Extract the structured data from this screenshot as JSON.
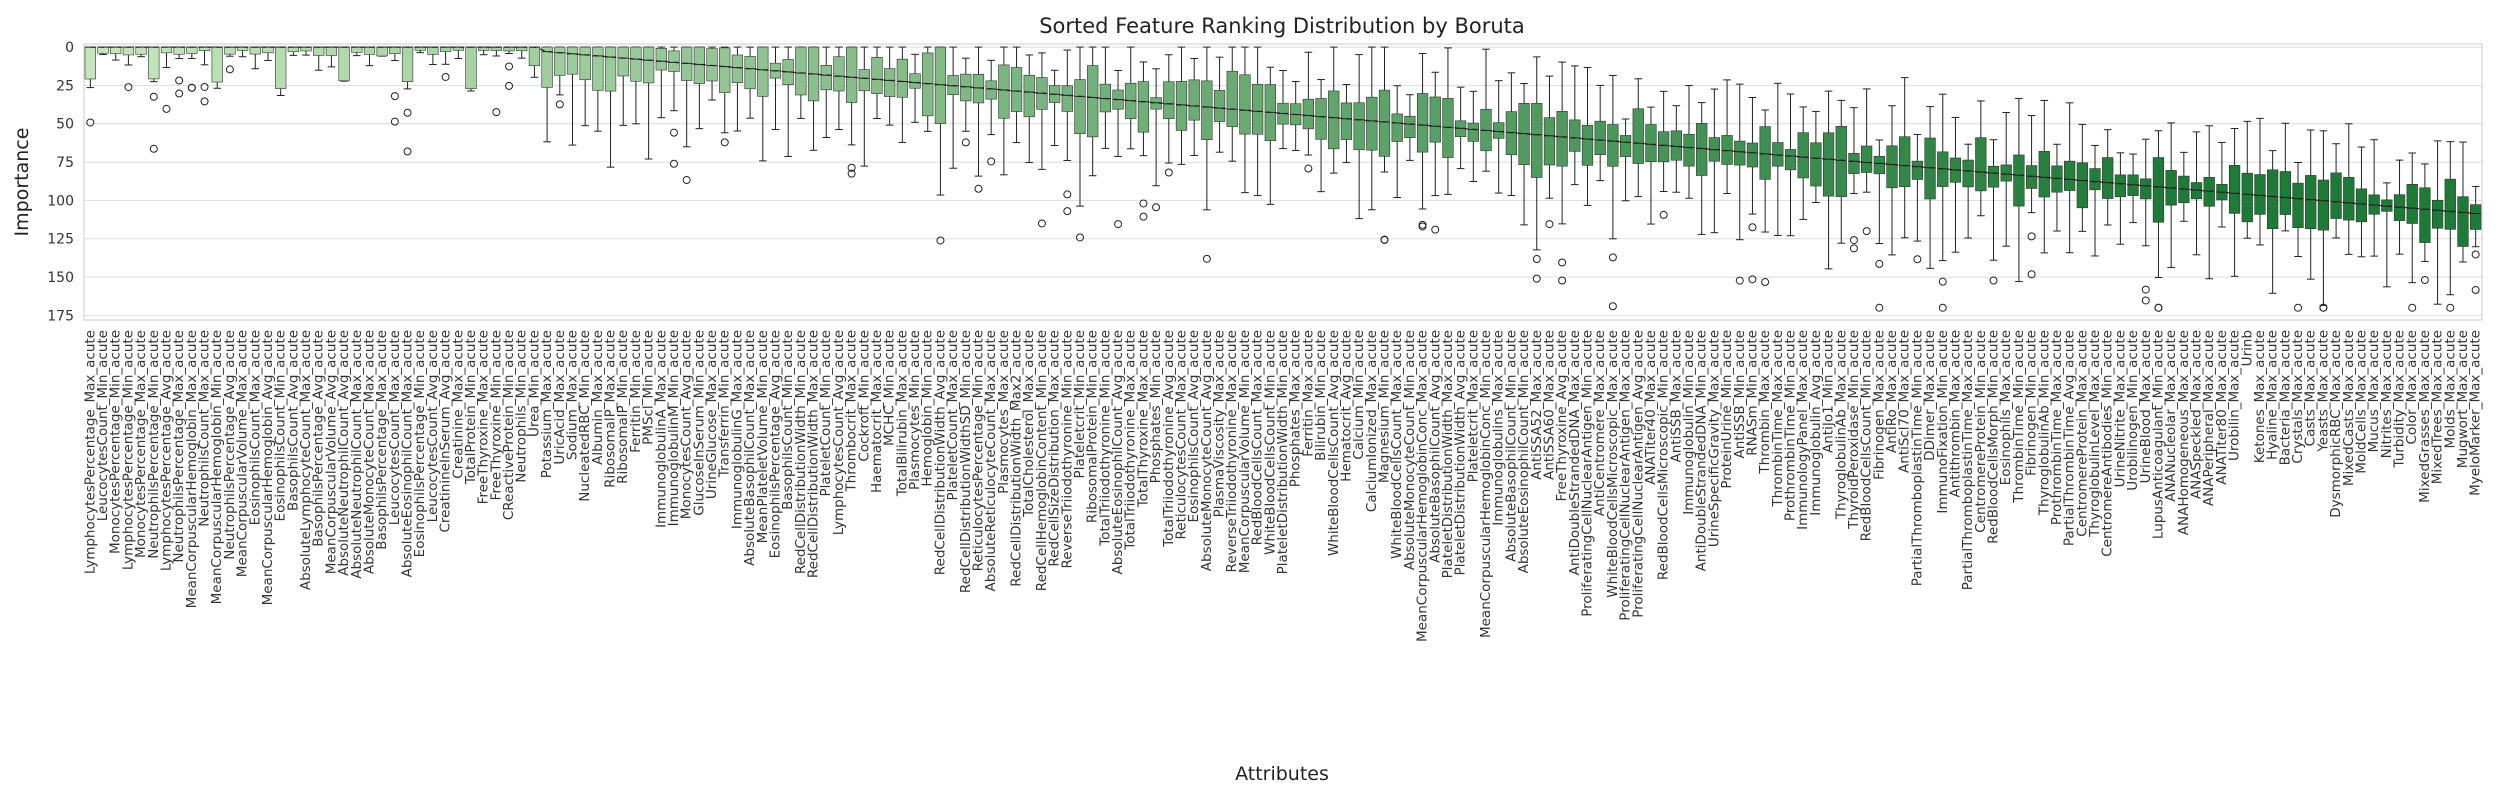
{
  "chart_data": {
    "type": "boxplot",
    "title": "Sorted Feature Ranking Distribution by Boruta",
    "xlabel": "Attributes",
    "ylabel": "Importance",
    "ylim": [
      -2,
      178
    ],
    "y_inverted": true,
    "yticks": [
      0,
      25,
      50,
      75,
      100,
      125,
      150,
      175
    ],
    "grid": "horizontal",
    "palette": {
      "light": "#c5e6bc",
      "mid": "#5fae66",
      "dark": "#1e7a37",
      "darkest": "#0f4d20"
    },
    "median_line_color": "#222222",
    "categories": [
      "LymphocytesPercentage_Max_acute",
      "LeucocytesCount_Min_acute",
      "MonocytesPercentage_Min_acute",
      "LymphocytesPercentage_Min_acute",
      "MonocytesPercentage_Max_acute",
      "NeutrophilsPercentage_Min_acute",
      "LymphocytesPercentage_Avg_acute",
      "NeutrophilsPercentage_Max_acute",
      "MeanCorpuscularHemoglobin_Max_acute",
      "NeutrophilsCount_Max_acute",
      "MeanCorpuscularHemoglobin_Min_acute",
      "NeutrophilsPercentage_Avg_acute",
      "MeanCorpuscularVolume_Max_acute",
      "EosinophilsCount_Max_acute",
      "MeanCorpuscularHemoglobin_Avg_acute",
      "EosinophilsCount_Min_acute",
      "BasophilsCount_Avg_acute",
      "AbsoluteLymphocyteCount_Max_acute",
      "BasophilsPercentage_Avg_acute",
      "MeanCorpuscularVolume_Avg_acute",
      "AbsoluteNeutrophilCount_Avg_acute",
      "AbsoluteNeutrophilCount_Max_acute",
      "AbsoluteMonocyteCount_Max_acute",
      "BasophilsPercentage_Max_acute",
      "LeucocytesCount_Max_acute",
      "AbsoluteEosinophilCount_Max_acute",
      "EosinophilsPercentage_Min_acute",
      "LeucocytesCount_Avg_acute",
      "CreatinineInSerum_Avg_acute",
      "Creatinine_Max_acute",
      "TotalProtein_Min_acute",
      "FreeThyroxine_Max_acute",
      "FreeThyroxine_Min_acute",
      "CReactiveProtein_Min_acute",
      "Neutrophils_Min_acute",
      "Urea_Min_acute",
      "Potassium_Max_acute",
      "UricAcid_Max_acute",
      "Sodium_Max_acute",
      "NucleatedRBC_Min_acute",
      "Albumin_Max_acute",
      "RibosomalP_Max_acute",
      "RibosomalP_Min_acute",
      "Ferritin_Min_acute",
      "PMScl_Min_acute",
      "ImmunoglobulinA_Max_acute",
      "ImmunoglobulinM_Min_acute",
      "MonocytesCount_Avg_acute",
      "GlucoseInSerum_Min_acute",
      "UrineGlucose_Max_acute",
      "Transferrin_Min_acute",
      "ImmunoglobulinG_Max_acute",
      "AbsoluteBasophilCount_Max_acute",
      "MeanPlateletVolume_Min_acute",
      "EosinophilsPercentage_Avg_acute",
      "BasophilsCount_Min_acute",
      "RedCellDistributionWidth_Min_acute",
      "RedCellDistributionWidth_Max_acute",
      "PlateletCount_Min_acute",
      "LymphocytesCount_Avg_acute",
      "Thrombocrit_Max_acute",
      "Cockroft_Min_acute",
      "Haematocrit_Max_acute",
      "MCHC_Min_acute",
      "TotalBilirubin_Max_acute",
      "Plasmocytes_Min_acute",
      "Hemoglobin_Min_acute",
      "RedCellDistributionWidth_Avg_acute",
      "PlateletCount_Max_acute",
      "RedCellDistributionWidthSD_Min_acute",
      "ReticulocytesPercentage_Min_acute",
      "AbsoluteReticulocyteCount_Max_acute",
      "Plasmocytes_Max_acute",
      "RedCellDistributionWidth_Max2_acute",
      "TotalCholesterol_Max_acute",
      "RedCellHemoglobinContent_Min_acute",
      "RedCellSizeDistribution_Max_acute",
      "ReverseTriiodothyronine_Min_acute",
      "Plateletcrit_Min_acute",
      "RibosomalProtein_Min_acute",
      "TotalTriiodothyronine_Min_acute",
      "AbsoluteEosinophilCount_Avg_acute",
      "TotalTriiodothyronine_Max_acute",
      "TotalThyroxine_Max_acute",
      "Phosphates_Min_acute",
      "TotalTriiodothyronine_Avg_acute",
      "ReticulocytesCount_Max_acute",
      "EosinophilsCount_Avg_acute",
      "AbsoluteMonocyteCount_Avg_acute",
      "PlasmaViscosity_Max_acute",
      "ReverseTriiodothyronine_Max_acute",
      "MeanCorpuscularVolume_Min_acute",
      "RedBloodCellsCount_Max_acute",
      "WhiteBloodCellsCount_Min_acute",
      "PlateletDistributionWidth_Min_acute",
      "Phosphates_Max_acute",
      "Ferritin_Max_acute",
      "Bilirubin_Min_acute",
      "WhiteBloodCellsCount_Avg_acute",
      "Hematocrit_Avg_acute",
      "Calcium_Min_acute",
      "CalciumIonized_Max_acute",
      "Magnesium_Min_acute",
      "WhiteBloodCellsCount_Max_acute",
      "AbsoluteMonocyteCount_Min_acute",
      "MeanCorpuscularHemoglobinConc_Max_acute",
      "AbsoluteBasophilCount_Avg_acute",
      "PlateletDistributionWidth_Max_acute",
      "PlateletDistributionWidth_Avg_acute",
      "Plateletcrit_Max_acute",
      "MeanCorpuscularHemoglobinConc_Min_acute",
      "Immunoglobulins_Max_acute",
      "AbsoluteBasophilCount_Min_acute",
      "AbsoluteEosinophilCount_Min_acute",
      "AntiSSA52_Max_acute",
      "AntiSSA60_Max_acute",
      "FreeThyroxine_Avg_acute",
      "AntiDoubleStrandedDNA_Max_acute",
      "ProliferatingCellNuclearAntigen_Min_acute",
      "AntiCentromere_Max_acute",
      "WhiteBloodCellsMicroscopic_Max_acute",
      "ProliferatingCellNuclearAntigen_Max_acute",
      "ProliferatingCellNuclearAntigen_Avg_acute",
      "ANATiter40_Max_acute",
      "RedBloodCellsMicroscopic_Min_acute",
      "AntiSSB_Max_acute",
      "Immunoglobulin_Min_acute",
      "AntiDoubleStrandedDNA_Min_acute",
      "UrineSpecificGravity_Max_acute",
      "ProteinUrine_Min_acute",
      "AntiSSB_Min_acute",
      "RNASm_Min_acute",
      "Thrombin_Max_acute",
      "ThrombinTime_Max_acute",
      "ProthrombinTime_Min_acute",
      "ImmunologyPanel_Max_acute",
      "Immunoglobulin_Avg_acute",
      "AntiJo1_Min_acute",
      "ThyroglobulinAb_Max_acute",
      "ThyroidPeroxidase_Min_acute",
      "RedBloodCellsCount_Min_acute",
      "Fibrinogen_Max_acute",
      "AntiRo_Max_acute",
      "AntiScl70_Max_acute",
      "PartialThromboplastinTime_Min_acute",
      "DDimer_Max_acute",
      "ImmunoFixation_Min_acute",
      "Antithrombin_Max_acute",
      "PartialThromboplastinTime_Max_acute",
      "CentromereProtein_Min_acute",
      "RedBloodCellsMorph_Min_acute",
      "Eosinophils_Max_acute",
      "ThrombinTime_Min_acute",
      "Fibrinogen_Min_acute",
      "ThyroglobulinAb_Min_acute",
      "ProthrombinTime_Max_acute",
      "PartialThrombinTime_Avg_acute",
      "CentromereProtein_Max_acute",
      "ThyroglobulinLevel_Max_acute",
      "CentromereAntibodies_Min_acute",
      "UrineNitrite_Max_acute",
      "Urobilinogen_Min_acute",
      "UrineBlood_Max_acute",
      "LupusAnticoagulant_Min_acute",
      "ANANucleolar_Max_acute",
      "ANAHomogeneous_Max_acute",
      "ANASpeckled_Max_acute",
      "ANAPeripheral_Max_acute",
      "ANATiter80_Max_acute",
      "Urobilin_Max_acute",
      "Urinb",
      "Ketones_Max_acute",
      "Hyaline_Max_acute",
      "Bacteria_Max_acute",
      "Crystals_Max_acute",
      "Casts_Max_acute",
      "Yeasts_Max_acute",
      "DysmorphicRBC_Max_acute",
      "MixedCasts_Max_acute",
      "MoldCells_Max_acute",
      "Mucus_Max_acute",
      "Nitrites_Max_acute",
      "Turbidity_Max_acute",
      "Color_Max_acute",
      "MixedGrasses_Max_acute",
      "MixedTrees_Max_acute",
      "Molds_Max_acute",
      "Mugwort_Max_acute",
      "MyeloMarker_Max_acute"
    ]
  }
}
